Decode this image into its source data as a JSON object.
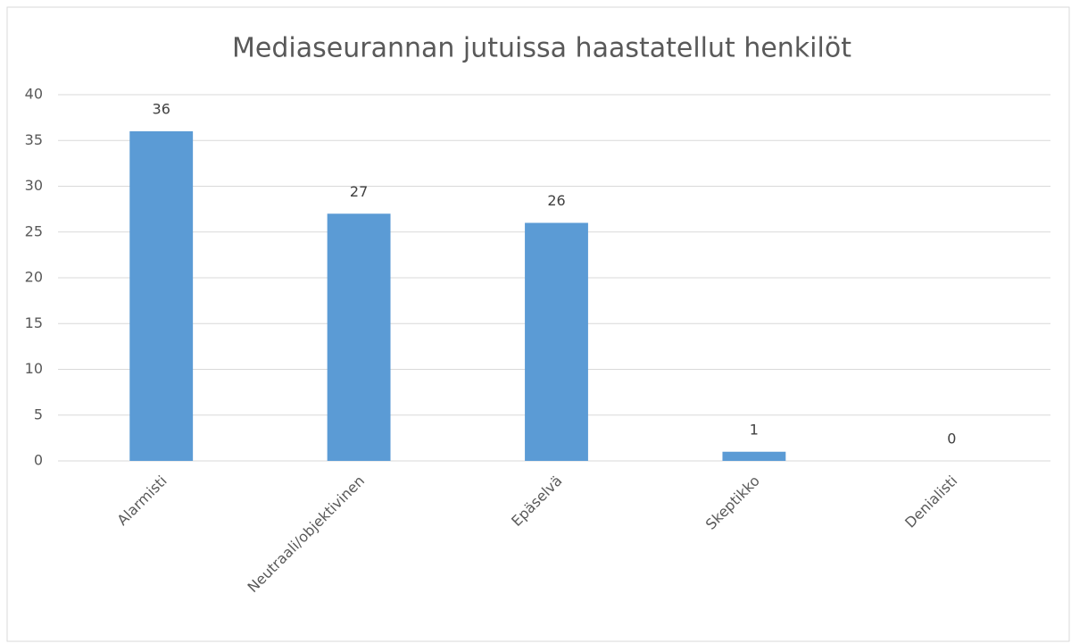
{
  "chart_data": {
    "type": "bar",
    "title": "Mediaseurannan jutuissa haastatellut henkilöt",
    "categories": [
      "Alarmisti",
      "Neutraali/objektivinen",
      "Epäselvä",
      "Skeptikko",
      "Denialisti"
    ],
    "values": [
      36,
      27,
      26,
      1,
      0
    ],
    "color": "#5b9bd5",
    "ylim": [
      0,
      40
    ],
    "yticks": [
      0,
      5,
      10,
      15,
      20,
      25,
      30,
      35,
      40
    ],
    "grid": true
  }
}
